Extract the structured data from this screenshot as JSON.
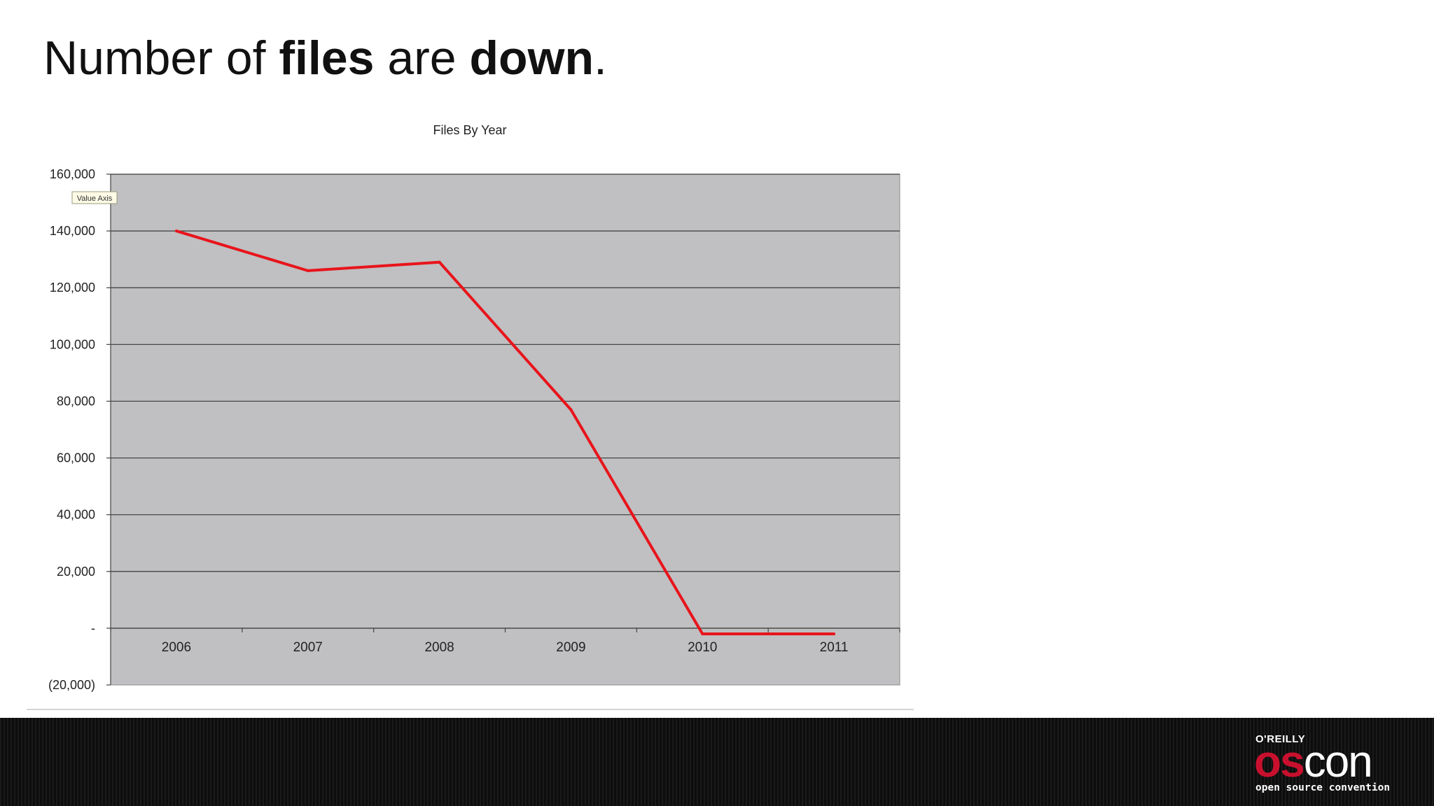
{
  "slide": {
    "title_parts": [
      "Number of ",
      "files",
      " are ",
      "down",
      "."
    ]
  },
  "chart_data": {
    "type": "line",
    "title": "Files By Year",
    "categories": [
      "2006",
      "2007",
      "2008",
      "2009",
      "2010",
      "2011"
    ],
    "series": [
      {
        "values": [
          140000,
          126000,
          129000,
          77000,
          -2000,
          -2000
        ],
        "color": "#e8141b"
      }
    ],
    "ylim": [
      -20000,
      160000
    ],
    "y_ticks": [
      160000,
      140000,
      120000,
      100000,
      80000,
      60000,
      40000,
      20000,
      0,
      -20000
    ],
    "y_tick_labels": [
      "160,000",
      "140,000",
      "120,000",
      "100,000",
      "80,000",
      "60,000",
      "40,000",
      "20,000",
      "-",
      "(20,000)"
    ],
    "tooltip": "Value Axis",
    "xlabel": "",
    "ylabel": "",
    "grid": true,
    "plot_background": "#c0bfc1",
    "legend": "none"
  },
  "logo": {
    "publisher": "O'REILLY",
    "word_red": "os",
    "word_white": "con",
    "tagline": "open source convention"
  },
  "colors": {
    "footer": "#141414",
    "logo_red": "#c8102e",
    "line": "#e8141b"
  }
}
